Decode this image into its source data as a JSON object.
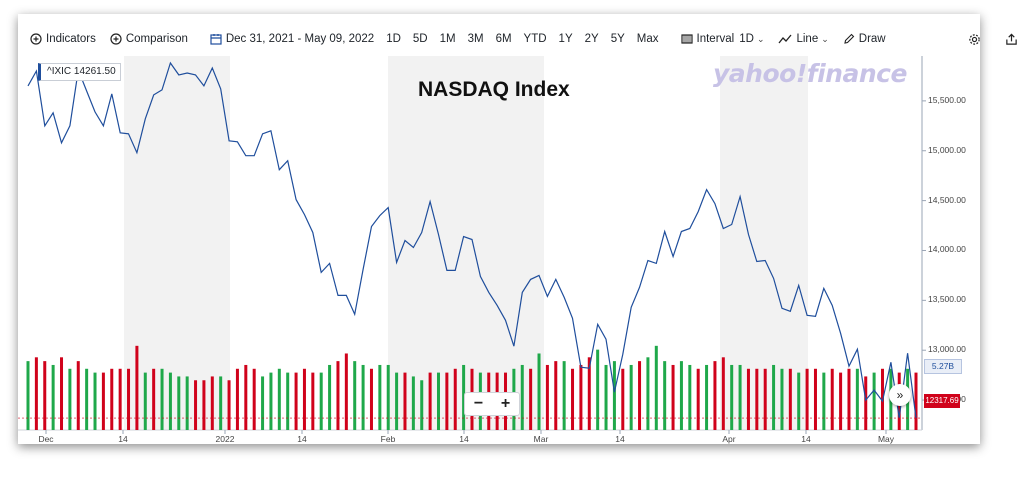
{
  "toolbar": {
    "indicators": "Indicators",
    "comparison": "Comparison",
    "date_range": "Dec 31, 2021 - May 09, 2022",
    "ranges": [
      "1D",
      "5D",
      "1M",
      "3M",
      "6M",
      "YTD",
      "1Y",
      "2Y",
      "5Y",
      "Max"
    ],
    "interval_label": "Interval",
    "interval_value": "1D",
    "chart_type": "Line",
    "draw": "Draw"
  },
  "symbol_badge": "^IXIC 14261.50",
  "brand": "yahoo!finance",
  "colors": {
    "line": "#1f4e9c",
    "vol_up": "#1fa84a",
    "vol_down": "#d0021b",
    "shade": "#f2f2f2"
  },
  "volume_tag": "5.27B",
  "last_price_tag": "12317.69",
  "zoom": {
    "minus": "−",
    "plus": "+"
  },
  "forward_icon": "»",
  "chart_data": {
    "type": "line",
    "title": "NASDAQ Index",
    "x_ticks": [
      "Dec",
      "14",
      "2022",
      "14",
      "Feb",
      "14",
      "Mar",
      "14",
      "Apr",
      "14",
      "May"
    ],
    "y_ticks": [
      "15,500.00",
      "15,000.00",
      "14,500.00",
      "14,000.00",
      "13,500.00",
      "13,000.00",
      "12,500.00"
    ],
    "ylim": [
      12200,
      15950
    ],
    "series": [
      {
        "values": [
          15650,
          15800,
          15250,
          15380,
          15080,
          15250,
          15810,
          15600,
          15390,
          15250,
          15570,
          15180,
          15170,
          14980,
          15320,
          15560,
          15610,
          15880,
          15760,
          15780,
          15760,
          15650,
          15830,
          15620,
          15100,
          15090,
          14950,
          14950,
          15170,
          15200,
          14810,
          14900,
          14510,
          14360,
          14180,
          13780,
          13870,
          13550,
          13550,
          13360,
          13810,
          14240,
          14350,
          14430,
          13880,
          14100,
          14030,
          14180,
          14490,
          14160,
          13800,
          13800,
          14140,
          14110,
          13740,
          13580,
          13450,
          13300,
          13040,
          13580,
          13710,
          13750,
          13540,
          13710,
          13530,
          13320,
          12830,
          12820,
          13260,
          13110,
          12580,
          12960,
          13430,
          13630,
          13900,
          13870,
          14190,
          13940,
          14190,
          14220,
          14390,
          14610,
          14470,
          14220,
          14260,
          14540,
          14160,
          13890,
          13900,
          13720,
          13420,
          13390,
          13650,
          13350,
          13340,
          13620,
          13450,
          13170,
          12840,
          13010,
          12500,
          12600,
          12490,
          12880,
          12320,
          12970,
          12320
        ]
      }
    ],
    "volume": {
      "values": [
        5.8,
        5.9,
        5.8,
        5.7,
        5.9,
        5.6,
        5.8,
        5.6,
        5.5,
        5.5,
        5.6,
        5.6,
        5.6,
        6.2,
        5.5,
        5.6,
        5.6,
        5.5,
        5.4,
        5.4,
        5.3,
        5.3,
        5.4,
        5.4,
        5.3,
        5.6,
        5.7,
        5.6,
        5.4,
        5.5,
        5.6,
        5.5,
        5.5,
        5.6,
        5.5,
        5.5,
        5.7,
        5.8,
        6.0,
        5.8,
        5.7,
        5.6,
        5.7,
        5.7,
        5.5,
        5.5,
        5.4,
        5.3,
        5.5,
        5.5,
        5.5,
        5.6,
        5.7,
        5.6,
        5.5,
        5.5,
        5.5,
        5.5,
        5.6,
        5.7,
        5.6,
        6.0,
        5.7,
        5.8,
        5.8,
        5.6,
        5.7,
        5.9,
        6.1,
        5.7,
        5.8,
        5.6,
        5.7,
        5.8,
        5.9,
        6.2,
        5.8,
        5.7,
        5.8,
        5.7,
        5.6,
        5.7,
        5.8,
        5.9,
        5.7,
        5.7,
        5.6,
        5.6,
        5.6,
        5.7,
        5.6,
        5.6,
        5.5,
        5.6,
        5.6,
        5.5,
        5.6,
        5.5,
        5.6,
        5.6,
        5.4,
        5.5,
        5.6,
        5.6,
        5.5,
        5.6,
        5.5
      ],
      "up": [
        1,
        0,
        0,
        1,
        0,
        1,
        0,
        1,
        1,
        0,
        0,
        0,
        0,
        0,
        1,
        0,
        1,
        1,
        1,
        1,
        0,
        0,
        0,
        1,
        0,
        0,
        0,
        0,
        1,
        1,
        1,
        1,
        0,
        0,
        0,
        1,
        1,
        0,
        0,
        1,
        1,
        0,
        1,
        1,
        1,
        0,
        1,
        1,
        0,
        1,
        0,
        0,
        1,
        0,
        1,
        0,
        0,
        0,
        1,
        1,
        0,
        1,
        0,
        0,
        1,
        0,
        0,
        0,
        1,
        1,
        1,
        0,
        1,
        0,
        1,
        1,
        1,
        0,
        1,
        1,
        0,
        1,
        0,
        0,
        1,
        1,
        0,
        0,
        0,
        1,
        1,
        0,
        1,
        0,
        0,
        1,
        0,
        0,
        0,
        1,
        0,
        1,
        0,
        1,
        0,
        1,
        0
      ]
    }
  }
}
